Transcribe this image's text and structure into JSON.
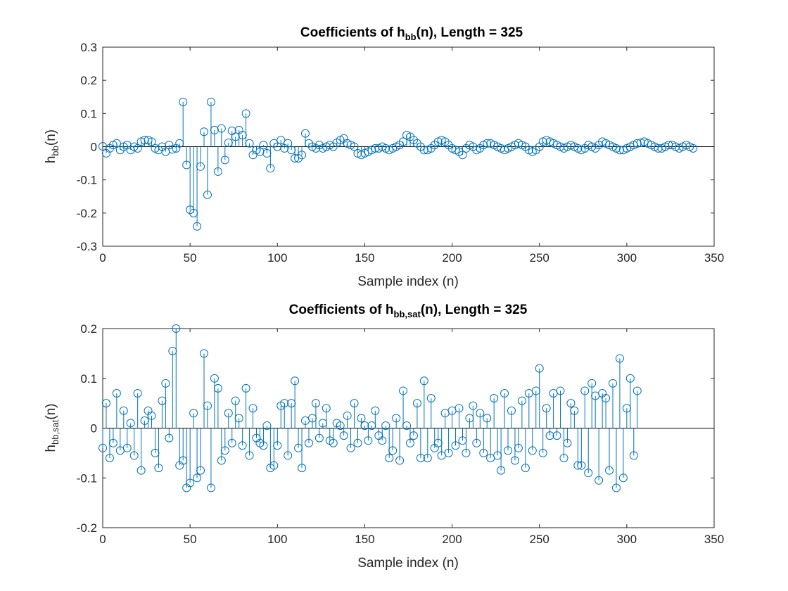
{
  "chart_data": [
    {
      "type": "stem",
      "title": {
        "prefix": "Coefficients of h",
        "sub": "bb",
        "suffix": "(n), Length = 325"
      },
      "xlabel": "Sample index (n)",
      "ylabel": {
        "prefix": "h",
        "sub": "bb",
        "suffix": "(n)"
      },
      "xlim": [
        0,
        350
      ],
      "ylim": [
        -0.3,
        0.3
      ],
      "xticks": [
        0,
        50,
        100,
        150,
        200,
        250,
        300,
        350
      ],
      "yticks": [
        -0.3,
        -0.2,
        -0.1,
        0,
        0.1,
        0.2,
        0.3
      ],
      "ytick_labels": [
        "-0.3",
        "-0.2",
        "-0.1",
        "0",
        "0.1",
        "0.2",
        "0.3"
      ],
      "color": "#0072BD",
      "grid": false,
      "length": 325,
      "sample_step": 2,
      "values": [
        0.001,
        -0.02,
        -0.005,
        0.005,
        0.01,
        -0.01,
        0.0,
        0.005,
        -0.01,
        0.0,
        -0.005,
        0.015,
        0.02,
        0.02,
        0.015,
        -0.005,
        -0.01,
        0.0,
        -0.015,
        0.005,
        -0.008,
        -0.005,
        0.01,
        0.135,
        -0.055,
        -0.19,
        -0.2,
        -0.24,
        -0.06,
        0.045,
        -0.145,
        0.135,
        0.05,
        -0.075,
        0.055,
        -0.04,
        0.012,
        0.048,
        0.03,
        0.05,
        0.035,
        0.1,
        0.01,
        -0.025,
        -0.01,
        -0.015,
        0.005,
        -0.02,
        -0.065,
        0.01,
        0.0,
        0.02,
        -0.005,
        0.01,
        -0.01,
        -0.035,
        -0.035,
        -0.025,
        0.04,
        0.01,
        0.0,
        -0.005,
        0.005,
        -0.005,
        0.0,
        0.005,
        0.0,
        0.012,
        0.02,
        0.025,
        0.01,
        0.005,
        0.0,
        -0.02,
        -0.025,
        -0.02,
        -0.015,
        -0.01,
        -0.005,
        -0.005,
        0.0,
        -0.005,
        -0.01,
        -0.005,
        0.0,
        0.005,
        0.015,
        0.035,
        0.03,
        0.02,
        0.01,
        0.0,
        -0.01,
        -0.01,
        -0.005,
        0.005,
        0.015,
        0.02,
        0.015,
        0.005,
        -0.005,
        -0.01,
        -0.015,
        -0.025,
        -0.005,
        0.005,
        0.0,
        -0.01,
        -0.005,
        0.005,
        0.01,
        0.01,
        0.005,
        0.0,
        -0.005,
        -0.01,
        -0.005,
        0.0,
        0.005,
        0.01,
        0.005,
        0.0,
        -0.01,
        -0.015,
        -0.01,
        0.0,
        0.015,
        0.02,
        0.015,
        0.01,
        0.005,
        0.0,
        -0.005,
        0.0,
        0.005,
        0.0,
        -0.005,
        -0.01,
        -0.005,
        0.005,
        0.0,
        -0.005,
        0.005,
        0.015,
        0.01,
        0.005,
        0.0,
        -0.005,
        -0.01,
        -0.01,
        -0.005,
        0.0,
        0.005,
        0.01,
        0.012,
        0.015,
        0.01,
        0.005,
        0.0,
        -0.005,
        -0.005,
        0.0,
        0.005,
        0.005,
        0.0,
        -0.005,
        0.0,
        0.005,
        0.0,
        -0.005
      ]
    },
    {
      "type": "stem",
      "title": {
        "prefix": "Coefficients of h",
        "sub": "bb,sat",
        "suffix": "(n), Length = 325"
      },
      "xlabel": "Sample index (n)",
      "ylabel": {
        "prefix": "h",
        "sub": "bb,sat",
        "suffix": "(n)"
      },
      "xlim": [
        0,
        350
      ],
      "ylim": [
        -0.2,
        0.2
      ],
      "xticks": [
        0,
        50,
        100,
        150,
        200,
        250,
        300,
        350
      ],
      "yticks": [
        -0.2,
        -0.1,
        0,
        0.1,
        0.2
      ],
      "ytick_labels": [
        "-0.2",
        "-0.1",
        "0",
        "0.1",
        "0.2"
      ],
      "color": "#0072BD",
      "grid": false,
      "length": 325,
      "sample_step": 2,
      "values": [
        -0.04,
        0.05,
        -0.06,
        -0.03,
        0.07,
        -0.045,
        0.035,
        -0.04,
        0.01,
        -0.055,
        0.07,
        -0.085,
        0.015,
        0.035,
        0.025,
        -0.05,
        -0.08,
        0.055,
        0.09,
        -0.02,
        0.155,
        0.2,
        -0.075,
        -0.065,
        -0.12,
        -0.11,
        0.03,
        -0.1,
        -0.085,
        0.15,
        0.045,
        -0.12,
        0.1,
        0.08,
        -0.065,
        -0.045,
        0.03,
        -0.03,
        0.055,
        0.02,
        -0.035,
        0.08,
        -0.055,
        0.04,
        -0.02,
        -0.03,
        -0.035,
        0.005,
        -0.08,
        -0.075,
        -0.035,
        0.045,
        0.05,
        -0.055,
        0.05,
        0.095,
        -0.04,
        -0.08,
        0.015,
        -0.03,
        0.02,
        0.05,
        -0.02,
        0.01,
        0.04,
        -0.025,
        -0.03,
        0.01,
        0.005,
        -0.015,
        0.025,
        -0.04,
        0.05,
        -0.03,
        0.02,
        0.005,
        -0.025,
        0.005,
        0.035,
        -0.015,
        -0.025,
        0.005,
        -0.06,
        -0.045,
        0.02,
        -0.065,
        0.075,
        0.005,
        -0.03,
        -0.015,
        0.05,
        -0.06,
        0.095,
        -0.06,
        0.06,
        -0.04,
        -0.03,
        -0.055,
        0.03,
        -0.05,
        0.035,
        -0.035,
        0.04,
        -0.025,
        -0.05,
        0.02,
        0.045,
        -0.03,
        0.03,
        -0.05,
        0.02,
        -0.06,
        0.06,
        -0.055,
        -0.085,
        0.07,
        -0.045,
        0.035,
        -0.065,
        -0.04,
        0.055,
        -0.08,
        0.07,
        -0.045,
        0.075,
        0.12,
        -0.05,
        0.04,
        -0.015,
        0.07,
        -0.015,
        0.075,
        -0.06,
        -0.03,
        0.05,
        0.035,
        -0.075,
        -0.075,
        0.075,
        -0.09,
        0.09,
        0.065,
        -0.105,
        0.07,
        0.06,
        -0.085,
        0.09,
        -0.12,
        0.14,
        -0.1,
        0.04,
        0.1,
        -0.055,
        0.075
      ]
    }
  ]
}
